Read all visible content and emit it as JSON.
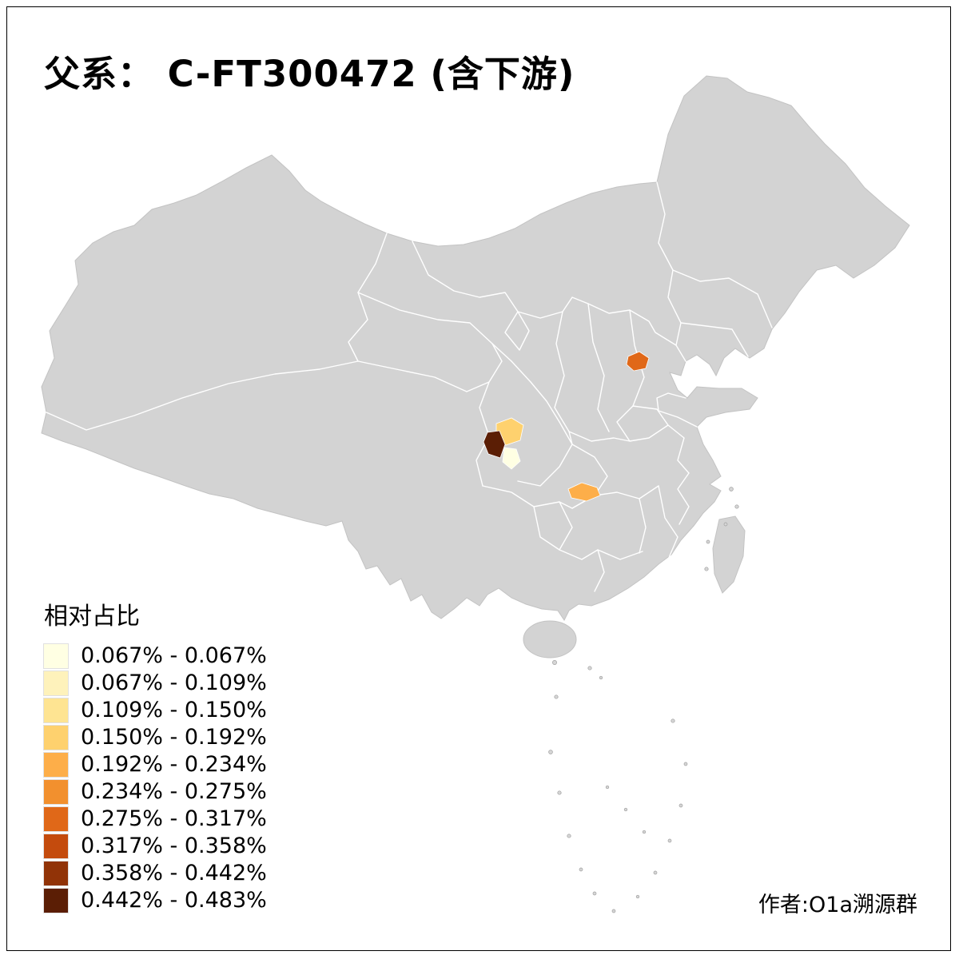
{
  "title": "父系： C-FT300472 (含下游)",
  "credit": "作者:O1a溯源群",
  "legend": {
    "title": "相对占比"
  },
  "map": {
    "no_data_fill": "#D3D3D3",
    "border_color": "#FFFFFF",
    "outline_color": "#C3C3C3",
    "background": "#FFFFFF"
  },
  "chart_data": {
    "type": "choropleth",
    "title": "父系： C-FT300472 (含下游)",
    "legend_title": "相对占比",
    "unit": "%",
    "no_data_note": "all uncolored regions shown in gray (no data)",
    "classes": [
      {
        "label": "0.067% - 0.067%",
        "color": "#FFFFE3"
      },
      {
        "label": "0.067% - 0.109%",
        "color": "#FEF2BB"
      },
      {
        "label": "0.109% - 0.150%",
        "color": "#FEE492"
      },
      {
        "label": "0.150% - 0.192%",
        "color": "#FED16E"
      },
      {
        "label": "0.192% - 0.234%",
        "color": "#FDAE49"
      },
      {
        "label": "0.234% - 0.275%",
        "color": "#F2902E"
      },
      {
        "label": "0.275% - 0.317%",
        "color": "#E06818"
      },
      {
        "label": "0.317% - 0.358%",
        "color": "#C44B0D"
      },
      {
        "label": "0.358% - 0.442%",
        "color": "#913307"
      },
      {
        "label": "0.442% - 0.483%",
        "color": "#5B1E05"
      }
    ],
    "regions": [
      {
        "area_hint": "Shandong small prefecture",
        "value_range": "0.275% - 0.317%",
        "color": "#E06818"
      },
      {
        "area_hint": "west Sichuan upper patch",
        "value_range": "0.150% - 0.192%",
        "color": "#FED16E"
      },
      {
        "area_hint": "west Sichuan dark patch",
        "value_range": "0.442% - 0.483%",
        "color": "#5B1E05"
      },
      {
        "area_hint": "central Sichuan pale patch",
        "value_range": "0.067% - 0.067%",
        "color": "#FFFFE3"
      },
      {
        "area_hint": "Hunan-Guizhou border patch",
        "value_range": "0.192% - 0.234%",
        "color": "#FDAE49"
      }
    ]
  }
}
